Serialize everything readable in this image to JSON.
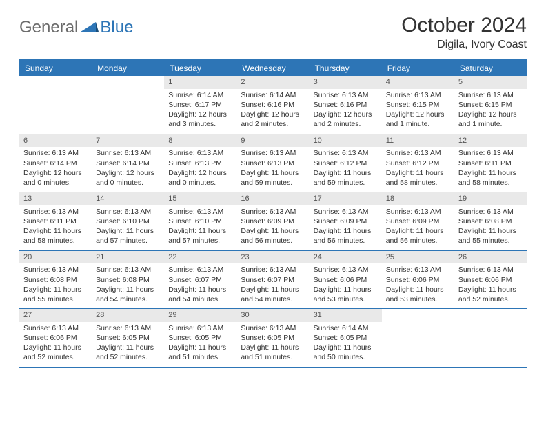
{
  "brand": {
    "part1": "General",
    "part2": "Blue"
  },
  "title": "October 2024",
  "location": "Digila, Ivory Coast",
  "colors": {
    "accent": "#2d75b6",
    "daynum_bg": "#e9e9e9",
    "text": "#333333"
  },
  "weekday_labels": [
    "Sunday",
    "Monday",
    "Tuesday",
    "Wednesday",
    "Thursday",
    "Friday",
    "Saturday"
  ],
  "weeks": [
    [
      null,
      null,
      {
        "n": "1",
        "sr": "Sunrise: 6:14 AM",
        "ss": "Sunset: 6:17 PM",
        "dl": "Daylight: 12 hours and 3 minutes."
      },
      {
        "n": "2",
        "sr": "Sunrise: 6:14 AM",
        "ss": "Sunset: 6:16 PM",
        "dl": "Daylight: 12 hours and 2 minutes."
      },
      {
        "n": "3",
        "sr": "Sunrise: 6:13 AM",
        "ss": "Sunset: 6:16 PM",
        "dl": "Daylight: 12 hours and 2 minutes."
      },
      {
        "n": "4",
        "sr": "Sunrise: 6:13 AM",
        "ss": "Sunset: 6:15 PM",
        "dl": "Daylight: 12 hours and 1 minute."
      },
      {
        "n": "5",
        "sr": "Sunrise: 6:13 AM",
        "ss": "Sunset: 6:15 PM",
        "dl": "Daylight: 12 hours and 1 minute."
      }
    ],
    [
      {
        "n": "6",
        "sr": "Sunrise: 6:13 AM",
        "ss": "Sunset: 6:14 PM",
        "dl": "Daylight: 12 hours and 0 minutes."
      },
      {
        "n": "7",
        "sr": "Sunrise: 6:13 AM",
        "ss": "Sunset: 6:14 PM",
        "dl": "Daylight: 12 hours and 0 minutes."
      },
      {
        "n": "8",
        "sr": "Sunrise: 6:13 AM",
        "ss": "Sunset: 6:13 PM",
        "dl": "Daylight: 12 hours and 0 minutes."
      },
      {
        "n": "9",
        "sr": "Sunrise: 6:13 AM",
        "ss": "Sunset: 6:13 PM",
        "dl": "Daylight: 11 hours and 59 minutes."
      },
      {
        "n": "10",
        "sr": "Sunrise: 6:13 AM",
        "ss": "Sunset: 6:12 PM",
        "dl": "Daylight: 11 hours and 59 minutes."
      },
      {
        "n": "11",
        "sr": "Sunrise: 6:13 AM",
        "ss": "Sunset: 6:12 PM",
        "dl": "Daylight: 11 hours and 58 minutes."
      },
      {
        "n": "12",
        "sr": "Sunrise: 6:13 AM",
        "ss": "Sunset: 6:11 PM",
        "dl": "Daylight: 11 hours and 58 minutes."
      }
    ],
    [
      {
        "n": "13",
        "sr": "Sunrise: 6:13 AM",
        "ss": "Sunset: 6:11 PM",
        "dl": "Daylight: 11 hours and 58 minutes."
      },
      {
        "n": "14",
        "sr": "Sunrise: 6:13 AM",
        "ss": "Sunset: 6:10 PM",
        "dl": "Daylight: 11 hours and 57 minutes."
      },
      {
        "n": "15",
        "sr": "Sunrise: 6:13 AM",
        "ss": "Sunset: 6:10 PM",
        "dl": "Daylight: 11 hours and 57 minutes."
      },
      {
        "n": "16",
        "sr": "Sunrise: 6:13 AM",
        "ss": "Sunset: 6:09 PM",
        "dl": "Daylight: 11 hours and 56 minutes."
      },
      {
        "n": "17",
        "sr": "Sunrise: 6:13 AM",
        "ss": "Sunset: 6:09 PM",
        "dl": "Daylight: 11 hours and 56 minutes."
      },
      {
        "n": "18",
        "sr": "Sunrise: 6:13 AM",
        "ss": "Sunset: 6:09 PM",
        "dl": "Daylight: 11 hours and 56 minutes."
      },
      {
        "n": "19",
        "sr": "Sunrise: 6:13 AM",
        "ss": "Sunset: 6:08 PM",
        "dl": "Daylight: 11 hours and 55 minutes."
      }
    ],
    [
      {
        "n": "20",
        "sr": "Sunrise: 6:13 AM",
        "ss": "Sunset: 6:08 PM",
        "dl": "Daylight: 11 hours and 55 minutes."
      },
      {
        "n": "21",
        "sr": "Sunrise: 6:13 AM",
        "ss": "Sunset: 6:08 PM",
        "dl": "Daylight: 11 hours and 54 minutes."
      },
      {
        "n": "22",
        "sr": "Sunrise: 6:13 AM",
        "ss": "Sunset: 6:07 PM",
        "dl": "Daylight: 11 hours and 54 minutes."
      },
      {
        "n": "23",
        "sr": "Sunrise: 6:13 AM",
        "ss": "Sunset: 6:07 PM",
        "dl": "Daylight: 11 hours and 54 minutes."
      },
      {
        "n": "24",
        "sr": "Sunrise: 6:13 AM",
        "ss": "Sunset: 6:06 PM",
        "dl": "Daylight: 11 hours and 53 minutes."
      },
      {
        "n": "25",
        "sr": "Sunrise: 6:13 AM",
        "ss": "Sunset: 6:06 PM",
        "dl": "Daylight: 11 hours and 53 minutes."
      },
      {
        "n": "26",
        "sr": "Sunrise: 6:13 AM",
        "ss": "Sunset: 6:06 PM",
        "dl": "Daylight: 11 hours and 52 minutes."
      }
    ],
    [
      {
        "n": "27",
        "sr": "Sunrise: 6:13 AM",
        "ss": "Sunset: 6:06 PM",
        "dl": "Daylight: 11 hours and 52 minutes."
      },
      {
        "n": "28",
        "sr": "Sunrise: 6:13 AM",
        "ss": "Sunset: 6:05 PM",
        "dl": "Daylight: 11 hours and 52 minutes."
      },
      {
        "n": "29",
        "sr": "Sunrise: 6:13 AM",
        "ss": "Sunset: 6:05 PM",
        "dl": "Daylight: 11 hours and 51 minutes."
      },
      {
        "n": "30",
        "sr": "Sunrise: 6:13 AM",
        "ss": "Sunset: 6:05 PM",
        "dl": "Daylight: 11 hours and 51 minutes."
      },
      {
        "n": "31",
        "sr": "Sunrise: 6:14 AM",
        "ss": "Sunset: 6:05 PM",
        "dl": "Daylight: 11 hours and 50 minutes."
      },
      null,
      null
    ]
  ]
}
